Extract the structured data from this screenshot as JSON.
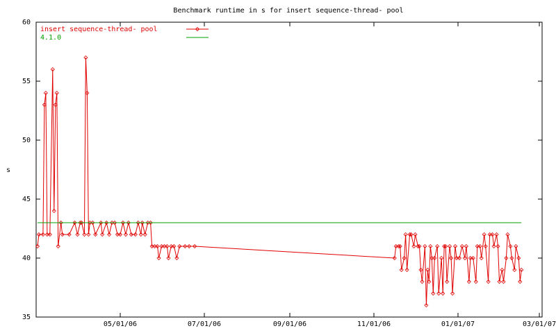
{
  "chart_data": {
    "type": "line",
    "title": "Benchmark runtime in s for insert sequence-thread-  pool",
    "y_label": "s",
    "xlim": [
      "03/01/06",
      "03/03/07"
    ],
    "xticks": [
      "05/01/06",
      "07/01/06",
      "09/01/06",
      "11/01/06",
      "01/01/07",
      "03/01/07"
    ],
    "ylim": [
      35,
      60
    ],
    "yticks": [
      35,
      40,
      45,
      50,
      55,
      60
    ],
    "grid": false,
    "legend": "top-left",
    "series": [
      {
        "name": "insert sequence-thread-  pool",
        "color": "#e00000",
        "markers": true,
        "x": [
          "03/02/06",
          "03/03/06",
          "03/06/06",
          "03/07/06",
          "03/08/06",
          "03/09/06",
          "03/11/06",
          "03/13/06",
          "03/14/06",
          "03/15/06",
          "03/16/06",
          "03/17/06",
          "03/19/06",
          "03/20/06",
          "03/25/06",
          "03/29/06",
          "03/31/06",
          "04/02/06",
          "04/03/06",
          "04/05/06",
          "04/06/06",
          "04/07/06",
          "04/08/06",
          "04/09/06",
          "04/11/06",
          "04/13/06",
          "04/17/06",
          "04/18/06",
          "04/21/06",
          "04/23/06",
          "04/25/06",
          "04/27/06",
          "04/29/06",
          "05/01/06",
          "05/03/06",
          "05/05/06",
          "05/07/06",
          "05/09/06",
          "05/12/06",
          "05/14/06",
          "05/16/06",
          "05/17/06",
          "05/19/06",
          "05/21/06",
          "05/23/06",
          "05/24/06",
          "05/26/06",
          "05/28/06",
          "05/29/06",
          "05/31/06",
          "06/02/06",
          "06/04/06",
          "06/05/06",
          "06/07/06",
          "06/09/06",
          "06/11/06",
          "06/13/06",
          "06/17/06",
          "06/20/06",
          "06/24/06",
          "11/16/06",
          "11/17/06",
          "11/19/06",
          "11/20/06",
          "11/21/06",
          "11/23/06",
          "11/24/06",
          "11/25/06",
          "11/27/06",
          "11/28/06",
          "11/30/06",
          "12/01/06",
          "12/03/06",
          "12/04/06",
          "12/05/06",
          "12/06/06",
          "12/08/06",
          "12/09/06",
          "12/10/06",
          "12/11/06",
          "12/12/06",
          "12/13/06",
          "12/14/06",
          "12/15/06",
          "12/17/06",
          "12/18/06",
          "12/20/06",
          "12/21/06",
          "12/22/06",
          "12/23/06",
          "12/24/06",
          "12/26/06",
          "12/27/06",
          "12/28/06",
          "12/30/06",
          "12/31/06",
          "01/02/07",
          "01/04/07",
          "01/06/07",
          "01/07/07",
          "01/09/07",
          "01/10/07",
          "01/12/07",
          "01/14/07",
          "01/15/07",
          "01/17/07",
          "01/18/07",
          "01/20/07",
          "01/21/07",
          "01/23/07",
          "01/24/07",
          "01/26/07",
          "01/27/07",
          "01/29/07",
          "01/30/07",
          "01/31/07",
          "02/02/07",
          "02/03/07",
          "02/05/07",
          "02/06/07",
          "02/08/07",
          "02/09/07",
          "02/11/07",
          "02/12/07",
          "02/14/07",
          "02/15/07",
          "02/16/07"
        ],
        "values": [
          41,
          42,
          42,
          53,
          54,
          42,
          42,
          56,
          44,
          53,
          54,
          41,
          43,
          42,
          42,
          43,
          42,
          43,
          43,
          42,
          57,
          54,
          42,
          43,
          43,
          42,
          43,
          42,
          43,
          42,
          43,
          43,
          42,
          42,
          43,
          42,
          43,
          42,
          42,
          43,
          42,
          43,
          42,
          43,
          43,
          41,
          41,
          41,
          40,
          41,
          41,
          41,
          40,
          41,
          41,
          40,
          41,
          41,
          41,
          41,
          40,
          41,
          41,
          41,
          39,
          40,
          42,
          39,
          42,
          42,
          41,
          42,
          41,
          41,
          39,
          38,
          41,
          36,
          39,
          38,
          41,
          40,
          37,
          40,
          41,
          37,
          40,
          37,
          41,
          41,
          38,
          41,
          40,
          37,
          41,
          40,
          40,
          41,
          40,
          41,
          38,
          40,
          40,
          38,
          41,
          41,
          40,
          42,
          41,
          38,
          42,
          42,
          41,
          42,
          41,
          38,
          39,
          38,
          40,
          42,
          41,
          40,
          39,
          41,
          40,
          38,
          39
        ]
      },
      {
        "name": "4.1.0",
        "color": "#00a000",
        "markers": false,
        "x": [
          "03/02/06",
          "02/16/07"
        ],
        "values": [
          43,
          43
        ]
      }
    ]
  }
}
